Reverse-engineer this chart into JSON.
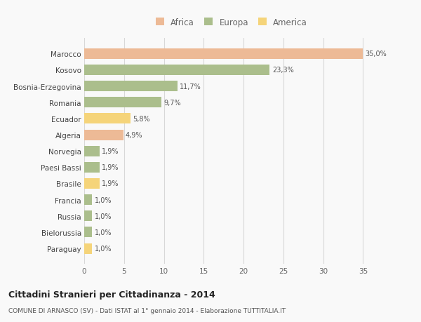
{
  "countries": [
    "Marocco",
    "Kosovo",
    "Bosnia-Erzegovina",
    "Romania",
    "Ecuador",
    "Algeria",
    "Norvegia",
    "Paesi Bassi",
    "Brasile",
    "Francia",
    "Russia",
    "Bielorussia",
    "Paraguay"
  ],
  "values": [
    35.0,
    23.3,
    11.7,
    9.7,
    5.8,
    4.9,
    1.9,
    1.9,
    1.9,
    1.0,
    1.0,
    1.0,
    1.0
  ],
  "labels": [
    "35,0%",
    "23,3%",
    "11,7%",
    "9,7%",
    "5,8%",
    "4,9%",
    "1,9%",
    "1,9%",
    "1,9%",
    "1,0%",
    "1,0%",
    "1,0%",
    "1,0%"
  ],
  "colors": [
    "#EDBA96",
    "#ABBE8C",
    "#ABBE8C",
    "#ABBE8C",
    "#F5D47A",
    "#EDBA96",
    "#ABBE8C",
    "#ABBE8C",
    "#F5D47A",
    "#ABBE8C",
    "#ABBE8C",
    "#ABBE8C",
    "#F5D47A"
  ],
  "legend_labels": [
    "Africa",
    "Europa",
    "America"
  ],
  "legend_colors": [
    "#EDBA96",
    "#ABBE8C",
    "#F5D47A"
  ],
  "title": "Cittadini Stranieri per Cittadinanza - 2014",
  "subtitle": "COMUNE DI ARNASCO (SV) - Dati ISTAT al 1° gennaio 2014 - Elaborazione TUTTITALIA.IT",
  "xlim": [
    0,
    37
  ],
  "xticks": [
    0,
    5,
    10,
    15,
    20,
    25,
    30,
    35
  ],
  "background_color": "#f9f9f9",
  "grid_color": "#d8d8d8",
  "bar_height": 0.65
}
